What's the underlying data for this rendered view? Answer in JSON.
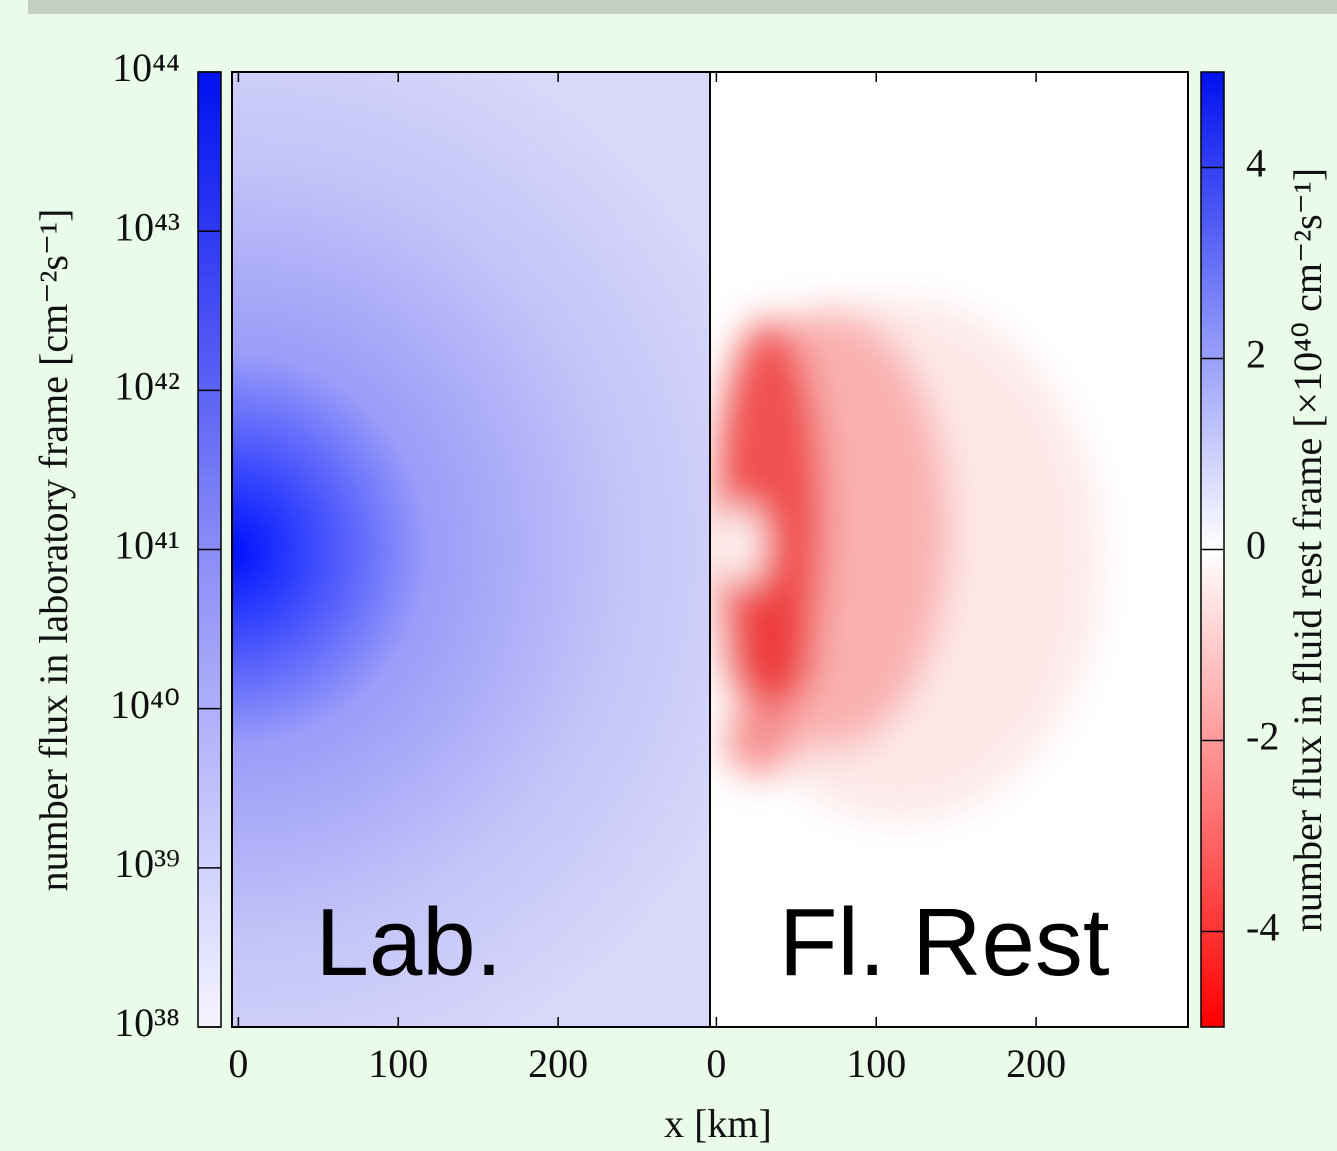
{
  "chart_data": {
    "type": "heatmap",
    "panels": [
      "Lab.",
      "Fl. Rest"
    ],
    "xlabel": "x [km]",
    "xlim": [
      -4,
      295
    ],
    "xticks": [
      0,
      100,
      200
    ],
    "colorbars": [
      {
        "label": "number flux in laboratory frame [cm⁻²s⁻¹]",
        "log": true,
        "ylim": [
          1e+38,
          1e+44
        ],
        "yticks": [
          {
            "value": 1e+38,
            "label": "10³⁸"
          },
          {
            "value": 1e+39,
            "label": "10³⁹"
          },
          {
            "value": 1e+40,
            "label": "10⁴⁰"
          },
          {
            "value": 1e+41,
            "label": "10⁴¹"
          },
          {
            "value": 1e+42,
            "label": "10⁴²"
          },
          {
            "value": 1e+43,
            "label": "10⁴³"
          },
          {
            "value": 1e+44,
            "label": "10⁴⁴"
          }
        ]
      },
      {
        "label": "number flux in fluid rest frame [×10⁴⁰ cm⁻²s⁻¹]",
        "log": false,
        "ylim": [
          -5,
          5
        ],
        "yticks": [
          -4,
          -2,
          0,
          2,
          4
        ]
      }
    ]
  }
}
